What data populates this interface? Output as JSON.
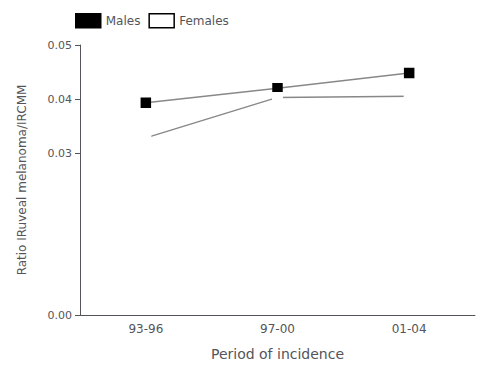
{
  "chart_data": {
    "type": "line",
    "categories": [
      "93-96",
      "97-00",
      "01-04"
    ],
    "series": [
      {
        "name": "Males",
        "color": "#000000",
        "marker": "square",
        "values": [
          0.0393,
          0.042,
          0.0448
        ]
      },
      {
        "name": "Females",
        "color": "#000000",
        "marker": "open_square",
        "values": [
          0.0328,
          0.0403,
          0.0405
        ]
      }
    ],
    "color": "#888888",
    "xlabel": "Period of incidence",
    "ylabel": "Ratio IRuveal melanoma/IRCMM",
    "ylim": [
      0.0,
      0.05
    ],
    "yticks": [
      {
        "value": 0,
        "label": "0.00"
      },
      0.03,
      0.04,
      0.05
    ],
    "grid": false,
    "legend": "upper left"
  }
}
